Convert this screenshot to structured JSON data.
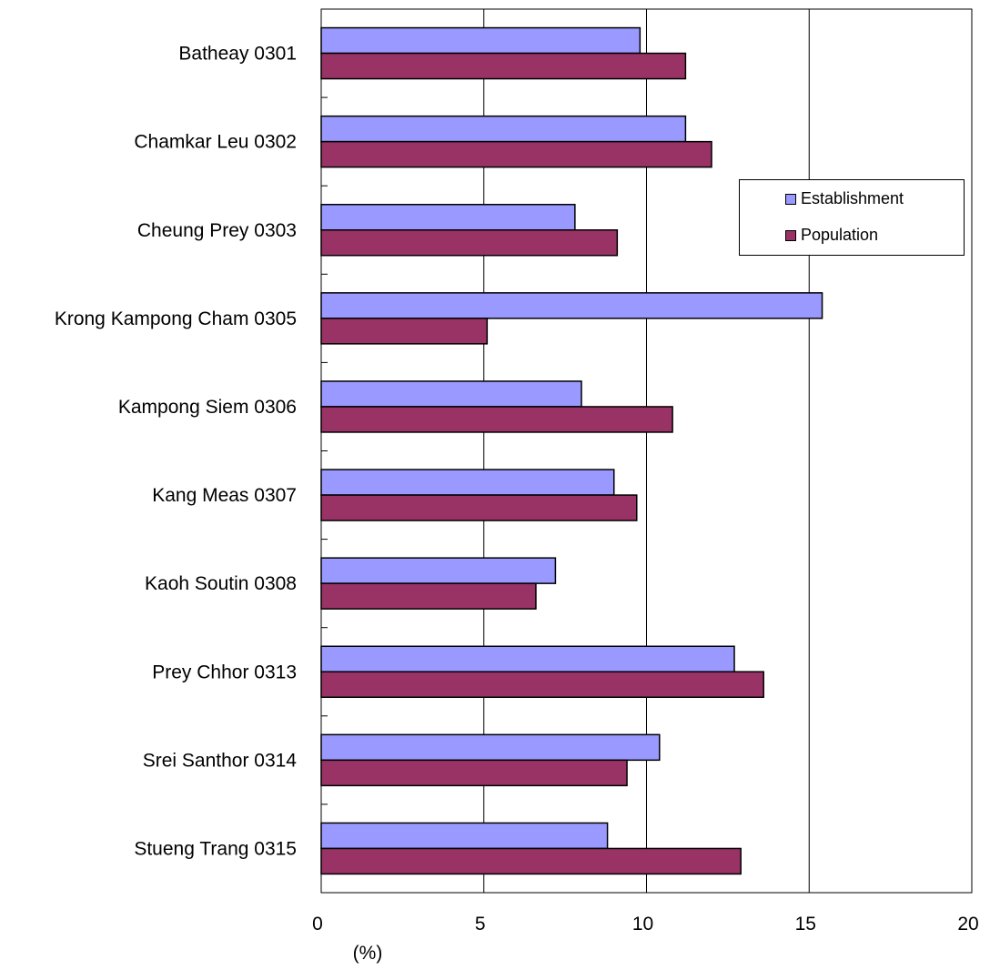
{
  "chart_data": {
    "type": "bar",
    "orientation": "horizontal",
    "categories": [
      "Batheay 0301",
      "Chamkar Leu 0302",
      "Cheung Prey 0303",
      "Krong Kampong Cham 0305",
      "Kampong Siem 0306",
      "Kang Meas 0307",
      "Kaoh Soutin 0308",
      "Prey Chhor 0313",
      "Srei Santhor 0314",
      "Stueng Trang 0315"
    ],
    "series": [
      {
        "name": "Establishment",
        "color": "#9999ff",
        "values": [
          9.8,
          11.2,
          7.8,
          15.4,
          8.0,
          9.0,
          7.2,
          12.7,
          10.4,
          8.8
        ]
      },
      {
        "name": "Population",
        "color": "#993366",
        "values": [
          11.2,
          12.0,
          9.1,
          5.1,
          10.8,
          9.7,
          6.6,
          13.6,
          9.4,
          12.9
        ]
      }
    ],
    "xlabel": "(%)",
    "xlim": [
      0,
      20
    ],
    "xticks": [
      "0",
      "5",
      "10",
      "15",
      "20"
    ],
    "grid": "vertical",
    "legend_position": "right"
  }
}
